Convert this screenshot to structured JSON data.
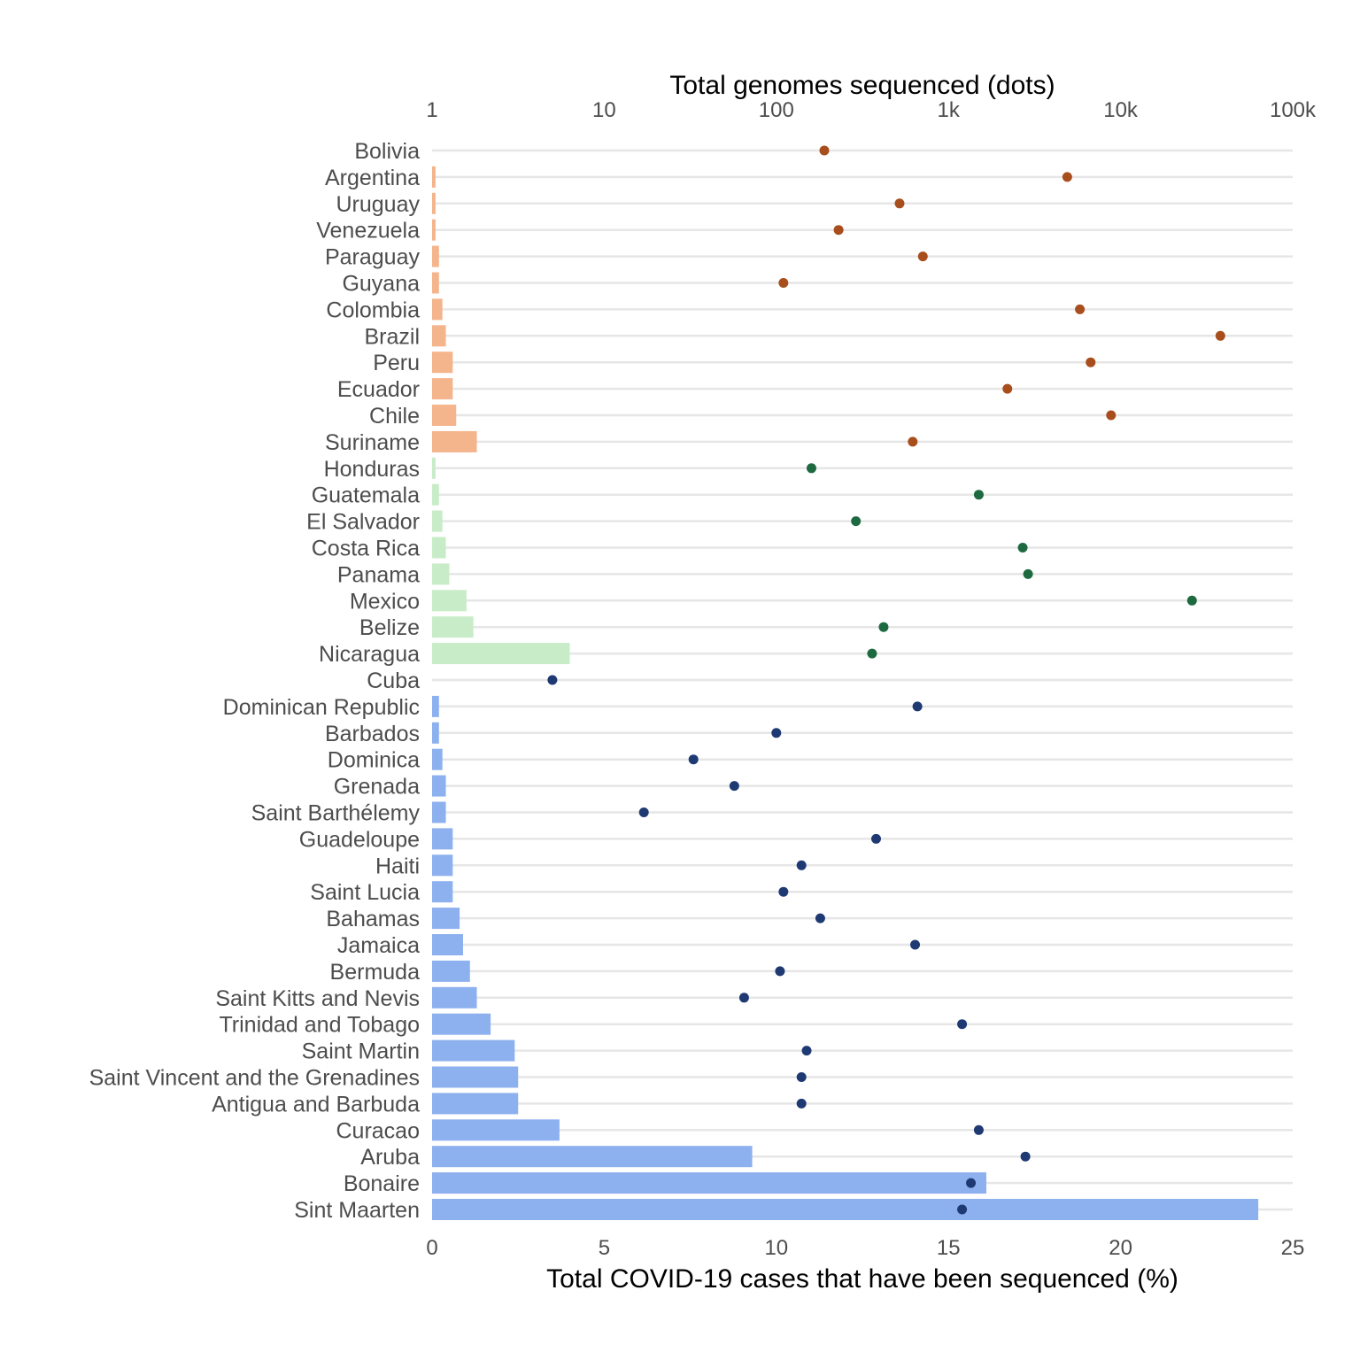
{
  "chart_data": {
    "type": "bar",
    "title": "",
    "xlabel": "Total COVID-19 cases that have been sequenced (%)",
    "x2label": "Total genomes sequenced (dots)",
    "xlim": [
      0,
      25
    ],
    "x_ticks": [
      0,
      5,
      10,
      15,
      20,
      25
    ],
    "x2_scale": "log10",
    "x2lim": [
      1,
      100000
    ],
    "x2_ticks": [
      {
        "value": 1,
        "label": "1"
      },
      {
        "value": 10,
        "label": "10"
      },
      {
        "value": 100,
        "label": "100"
      },
      {
        "value": 1000,
        "label": "1k"
      },
      {
        "value": 10000,
        "label": "10k"
      },
      {
        "value": 100000,
        "label": "100k"
      }
    ],
    "grid": true,
    "legend": "none",
    "groups": [
      {
        "id": "south-america",
        "bar_color": "#f4b48c",
        "dot_color": "#a84d1c"
      },
      {
        "id": "central-america",
        "bar_color": "#c8ecc8",
        "dot_color": "#1e6a40"
      },
      {
        "id": "caribbean",
        "bar_color": "#8db0ee",
        "dot_color": "#1f3a73"
      }
    ],
    "categories": [
      "Bolivia",
      "Argentina",
      "Uruguay",
      "Venezuela",
      "Paraguay",
      "Guyana",
      "Colombia",
      "Brazil",
      "Peru",
      "Ecuador",
      "Chile",
      "Suriname",
      "Honduras",
      "Guatemala",
      "El Salvador",
      "Costa Rica",
      "Panama",
      "Mexico",
      "Belize",
      "Nicaragua",
      "Cuba",
      "Dominican Republic",
      "Barbados",
      "Dominica",
      "Grenada",
      "Saint Barthélemy",
      "Guadeloupe",
      "Haiti",
      "Saint Lucia",
      "Bahamas",
      "Jamaica",
      "Bermuda",
      "Saint Kitts and Nevis",
      "Trinidad and Tobago",
      "Saint Martin",
      "Saint Vincent and the Grenadines",
      "Antigua and Barbuda",
      "Curacao",
      "Aruba",
      "Bonaire",
      "Sint Maarten"
    ],
    "category_group": [
      "south-america",
      "south-america",
      "south-america",
      "south-america",
      "south-america",
      "south-america",
      "south-america",
      "south-america",
      "south-america",
      "south-america",
      "south-america",
      "south-america",
      "central-america",
      "central-america",
      "central-america",
      "central-america",
      "central-america",
      "central-america",
      "central-america",
      "central-america",
      "caribbean",
      "caribbean",
      "caribbean",
      "caribbean",
      "caribbean",
      "caribbean",
      "caribbean",
      "caribbean",
      "caribbean",
      "caribbean",
      "caribbean",
      "caribbean",
      "caribbean",
      "caribbean",
      "caribbean",
      "caribbean",
      "caribbean",
      "caribbean",
      "caribbean",
      "caribbean",
      "caribbean"
    ],
    "series": [
      {
        "kind": "bar",
        "values": [
          0,
          0.1,
          0.1,
          0.1,
          0.2,
          0.2,
          0.3,
          0.4,
          0.6,
          0.6,
          0.7,
          1.3,
          0.1,
          0.2,
          0.3,
          0.4,
          0.5,
          1.0,
          1.2,
          4.0,
          0,
          0.2,
          0.2,
          0.3,
          0.4,
          0.4,
          0.6,
          0.6,
          0.6,
          0.8,
          0.9,
          1.1,
          1.3,
          1.7,
          2.4,
          2.5,
          2.5,
          3.7,
          9.3,
          16.1,
          24.0
        ]
      },
      {
        "kind": "dot",
        "values": [
          190,
          4900,
          520,
          230,
          710,
          110,
          5800,
          38000,
          6700,
          2200,
          8800,
          620,
          160,
          1500,
          290,
          2700,
          2900,
          26000,
          420,
          360,
          5,
          660,
          100,
          33,
          57,
          17,
          380,
          140,
          110,
          180,
          640,
          105,
          65,
          1200,
          150,
          140,
          140,
          1500,
          2800,
          1350,
          1200
        ]
      }
    ]
  }
}
